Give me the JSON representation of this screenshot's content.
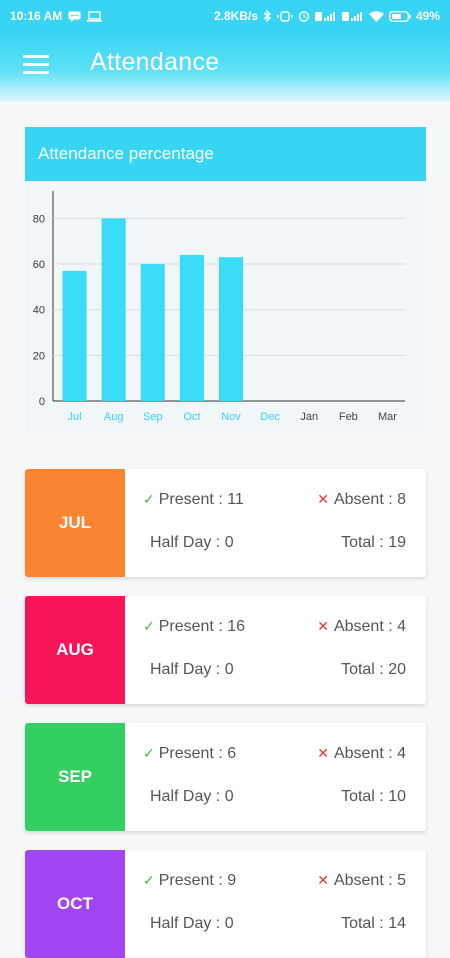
{
  "status_bar": {
    "time": "10:16 AM",
    "speed": "2.8KB/s",
    "battery": "49%"
  },
  "app_bar": {
    "title": "Attendance"
  },
  "chart_card": {
    "header": "Attendance percentage"
  },
  "chart_data": {
    "type": "bar",
    "categories": [
      "Jul",
      "Aug",
      "Sep",
      "Oct",
      "Nov",
      "Dec",
      "Jan",
      "Feb",
      "Mar"
    ],
    "values": [
      57,
      80,
      60,
      64,
      63,
      null,
      null,
      null,
      null
    ],
    "yticks": [
      0,
      20,
      40,
      60,
      80
    ],
    "ylim": [
      0,
      92
    ],
    "grid": true,
    "highlighted_categories": [
      "Jul",
      "Aug",
      "Sep",
      "Oct",
      "Nov",
      "Dec"
    ],
    "bar_color": "#38dcf7",
    "highlight_label_color": "#38d4f3",
    "label_color": "#444444"
  },
  "months": [
    {
      "label": "JUL",
      "color": "#fb8432",
      "present": "Present : 11",
      "absent": "Absent : 8",
      "half_day": "Half Day : 0",
      "total": "Total : 19"
    },
    {
      "label": "AUG",
      "color": "#f81458",
      "present": "Present : 16",
      "absent": "Absent : 4",
      "half_day": "Half Day : 0",
      "total": "Total : 20"
    },
    {
      "label": "SEP",
      "color": "#33d061",
      "present": "Present : 6",
      "absent": "Absent : 4",
      "half_day": "Half Day : 0",
      "total": "Total : 10"
    },
    {
      "label": "OCT",
      "color": "#a245f5",
      "present": "Present : 9",
      "absent": "Absent : 5",
      "half_day": "Half Day : 0",
      "total": "Total : 14"
    }
  ],
  "icons": {
    "present": "check-icon",
    "absent": "cross-icon",
    "menu": "hamburger-menu-icon"
  }
}
